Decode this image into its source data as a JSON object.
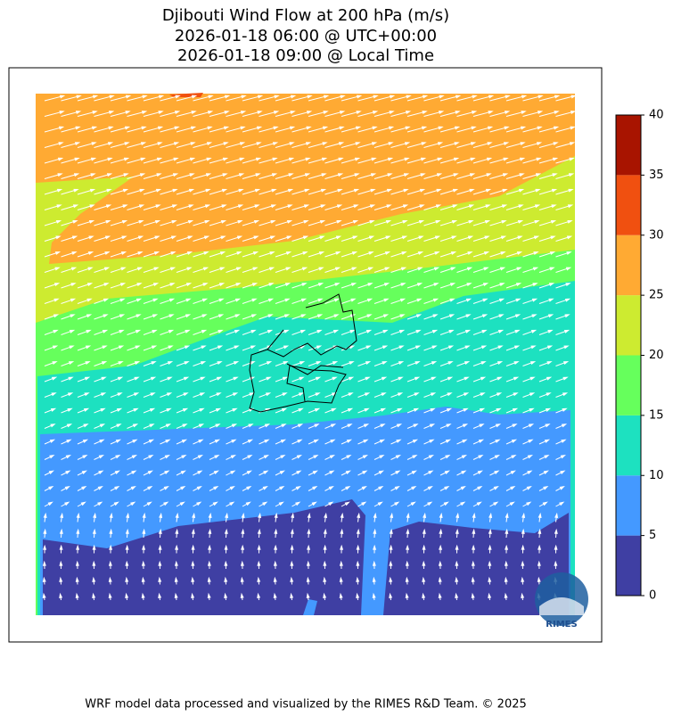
{
  "title_lines": [
    "Djibouti Wind Flow at 200 hPa (m/s)",
    "2026-01-18 06:00 @ UTC+00:00",
    "2026-01-18 09:00 @ Local Time"
  ],
  "colorbar": {
    "ticks": [
      0,
      5,
      10,
      15,
      20,
      25,
      30,
      35,
      40
    ],
    "colors": [
      "#3f3fa3",
      "#4499ff",
      "#1de1c0",
      "#66ff5c",
      "#cdeb30",
      "#ffaa33",
      "#f05010",
      "#a81400"
    ]
  },
  "logo_text": "RIMES",
  "footer": "WRF model data processed and visualized by the RIMES R&D Team. © 2025"
}
